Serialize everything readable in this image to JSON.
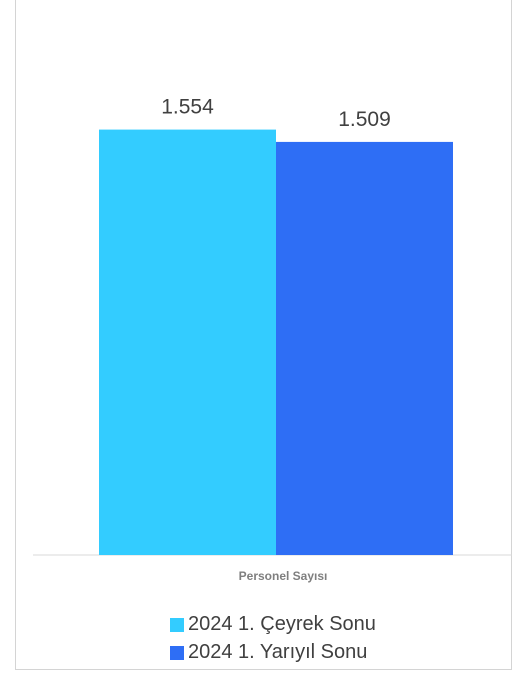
{
  "chart_data": {
    "type": "bar",
    "categories": [
      "Personel Sayısı"
    ],
    "series": [
      {
        "name": "2024 1. Çeyrek Sonu",
        "values": [
          1554
        ],
        "label": "1.554",
        "color": "#33ccff"
      },
      {
        "name": "2024 1. Yarıyıl Sonu",
        "values": [
          1509
        ],
        "label": "1.509",
        "color": "#2e6ef5"
      }
    ],
    "title": "",
    "xlabel": "",
    "ylabel": "",
    "ylim": [
      0,
      1600
    ],
    "grid": false,
    "legend_position": "bottom"
  }
}
